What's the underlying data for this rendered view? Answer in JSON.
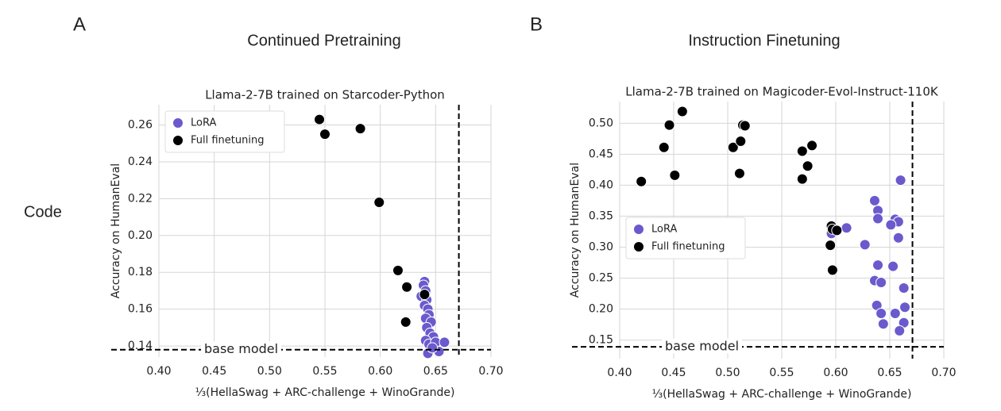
{
  "panels": [
    {
      "letter": "A",
      "heading": "Continued Pretraining"
    },
    {
      "letter": "B",
      "heading": "Instruction Finetuning"
    }
  ],
  "row_label": "Code",
  "chart_data": [
    {
      "type": "scatter",
      "title": "Llama-2-7B trained on Starcoder-Python",
      "xlabel": "⅓(HellaSwag + ARC-challenge + WinoGrande)",
      "ylabel": "Accuracy on HumanEval",
      "xlim": [
        0.4,
        0.7
      ],
      "ylim": [
        0.134,
        0.271
      ],
      "xticks": [
        {
          "value": 0.4,
          "label": "0.40"
        },
        {
          "value": 0.45,
          "label": "0.45"
        },
        {
          "value": 0.5,
          "label": "0.50"
        },
        {
          "value": 0.55,
          "label": "0.55"
        },
        {
          "value": 0.6,
          "label": "0.60"
        },
        {
          "value": 0.65,
          "label": "0.65"
        },
        {
          "value": 0.7,
          "label": "0.70"
        }
      ],
      "yticks": [
        {
          "value": 0.14,
          "label": "0.14"
        },
        {
          "value": 0.16,
          "label": "0.16"
        },
        {
          "value": 0.18,
          "label": "0.18"
        },
        {
          "value": 0.2,
          "label": "0.20"
        },
        {
          "value": 0.22,
          "label": "0.22"
        },
        {
          "value": 0.24,
          "label": "0.24"
        },
        {
          "value": 0.26,
          "label": "0.26"
        }
      ],
      "grid": true,
      "legend": "upper left",
      "ref_x": 0.671,
      "ref_y": 0.138,
      "annotation": "base model",
      "series": [
        {
          "name": "LoRA",
          "color": "#6a5acd",
          "x": [
            0.64,
            0.639,
            0.637,
            0.641,
            0.642,
            0.64,
            0.643,
            0.644,
            0.641,
            0.646,
            0.642,
            0.645,
            0.648,
            0.641,
            0.644,
            0.65,
            0.653,
            0.658,
            0.643,
            0.647
          ],
          "values": [
            0.175,
            0.173,
            0.167,
            0.17,
            0.165,
            0.162,
            0.16,
            0.157,
            0.155,
            0.153,
            0.15,
            0.147,
            0.145,
            0.143,
            0.141,
            0.142,
            0.137,
            0.142,
            0.136,
            0.139
          ]
        },
        {
          "name": "Full finetuning",
          "color": "#000000",
          "x": [
            0.545,
            0.55,
            0.582,
            0.599,
            0.616,
            0.624,
            0.623,
            0.64
          ],
          "values": [
            0.263,
            0.255,
            0.258,
            0.218,
            0.181,
            0.172,
            0.153,
            0.168
          ]
        }
      ]
    },
    {
      "type": "scatter",
      "title": "Llama-2-7B trained on Magicoder-Evol-Instruct-110K",
      "xlabel": "⅓(HellaSwag + ARC-challenge + WinoGrande)",
      "ylabel": "Accuracy on HumanEval",
      "xlim": [
        0.4,
        0.7
      ],
      "ylim": [
        0.12,
        0.535
      ],
      "xticks": [
        {
          "value": 0.4,
          "label": "0.40"
        },
        {
          "value": 0.45,
          "label": "0.45"
        },
        {
          "value": 0.5,
          "label": "0.50"
        },
        {
          "value": 0.55,
          "label": "0.55"
        },
        {
          "value": 0.6,
          "label": "0.60"
        },
        {
          "value": 0.65,
          "label": "0.65"
        },
        {
          "value": 0.7,
          "label": "0.70"
        }
      ],
      "yticks": [
        {
          "value": 0.15,
          "label": "0.15"
        },
        {
          "value": 0.2,
          "label": "0.20"
        },
        {
          "value": 0.25,
          "label": "0.25"
        },
        {
          "value": 0.3,
          "label": "0.30"
        },
        {
          "value": 0.35,
          "label": "0.35"
        },
        {
          "value": 0.4,
          "label": "0.40"
        },
        {
          "value": 0.45,
          "label": "0.45"
        },
        {
          "value": 0.5,
          "label": "0.50"
        }
      ],
      "grid": true,
      "legend": "center left",
      "ref_x": 0.671,
      "ref_y": 0.139,
      "annotation": "base model",
      "series": [
        {
          "name": "LoRA",
          "color": "#6a5acd",
          "x": [
            0.66,
            0.636,
            0.639,
            0.639,
            0.655,
            0.658,
            0.651,
            0.658,
            0.61,
            0.596,
            0.627,
            0.639,
            0.653,
            0.636,
            0.642,
            0.663,
            0.638,
            0.664,
            0.642,
            0.655,
            0.644,
            0.663,
            0.659
          ],
          "values": [
            0.408,
            0.375,
            0.359,
            0.346,
            0.345,
            0.341,
            0.336,
            0.315,
            0.331,
            0.322,
            0.304,
            0.271,
            0.269,
            0.246,
            0.243,
            0.234,
            0.206,
            0.203,
            0.193,
            0.193,
            0.176,
            0.178,
            0.165
          ]
        },
        {
          "name": "Full finetuning",
          "color": "#000000",
          "x": [
            0.42,
            0.441,
            0.446,
            0.451,
            0.458,
            0.505,
            0.512,
            0.514,
            0.516,
            0.511,
            0.569,
            0.569,
            0.574,
            0.578,
            0.596,
            0.597,
            0.601,
            0.595,
            0.597
          ],
          "values": [
            0.406,
            0.461,
            0.497,
            0.416,
            0.519,
            0.461,
            0.471,
            0.497,
            0.496,
            0.419,
            0.455,
            0.41,
            0.431,
            0.464,
            0.334,
            0.329,
            0.327,
            0.303,
            0.263
          ]
        }
      ]
    }
  ]
}
